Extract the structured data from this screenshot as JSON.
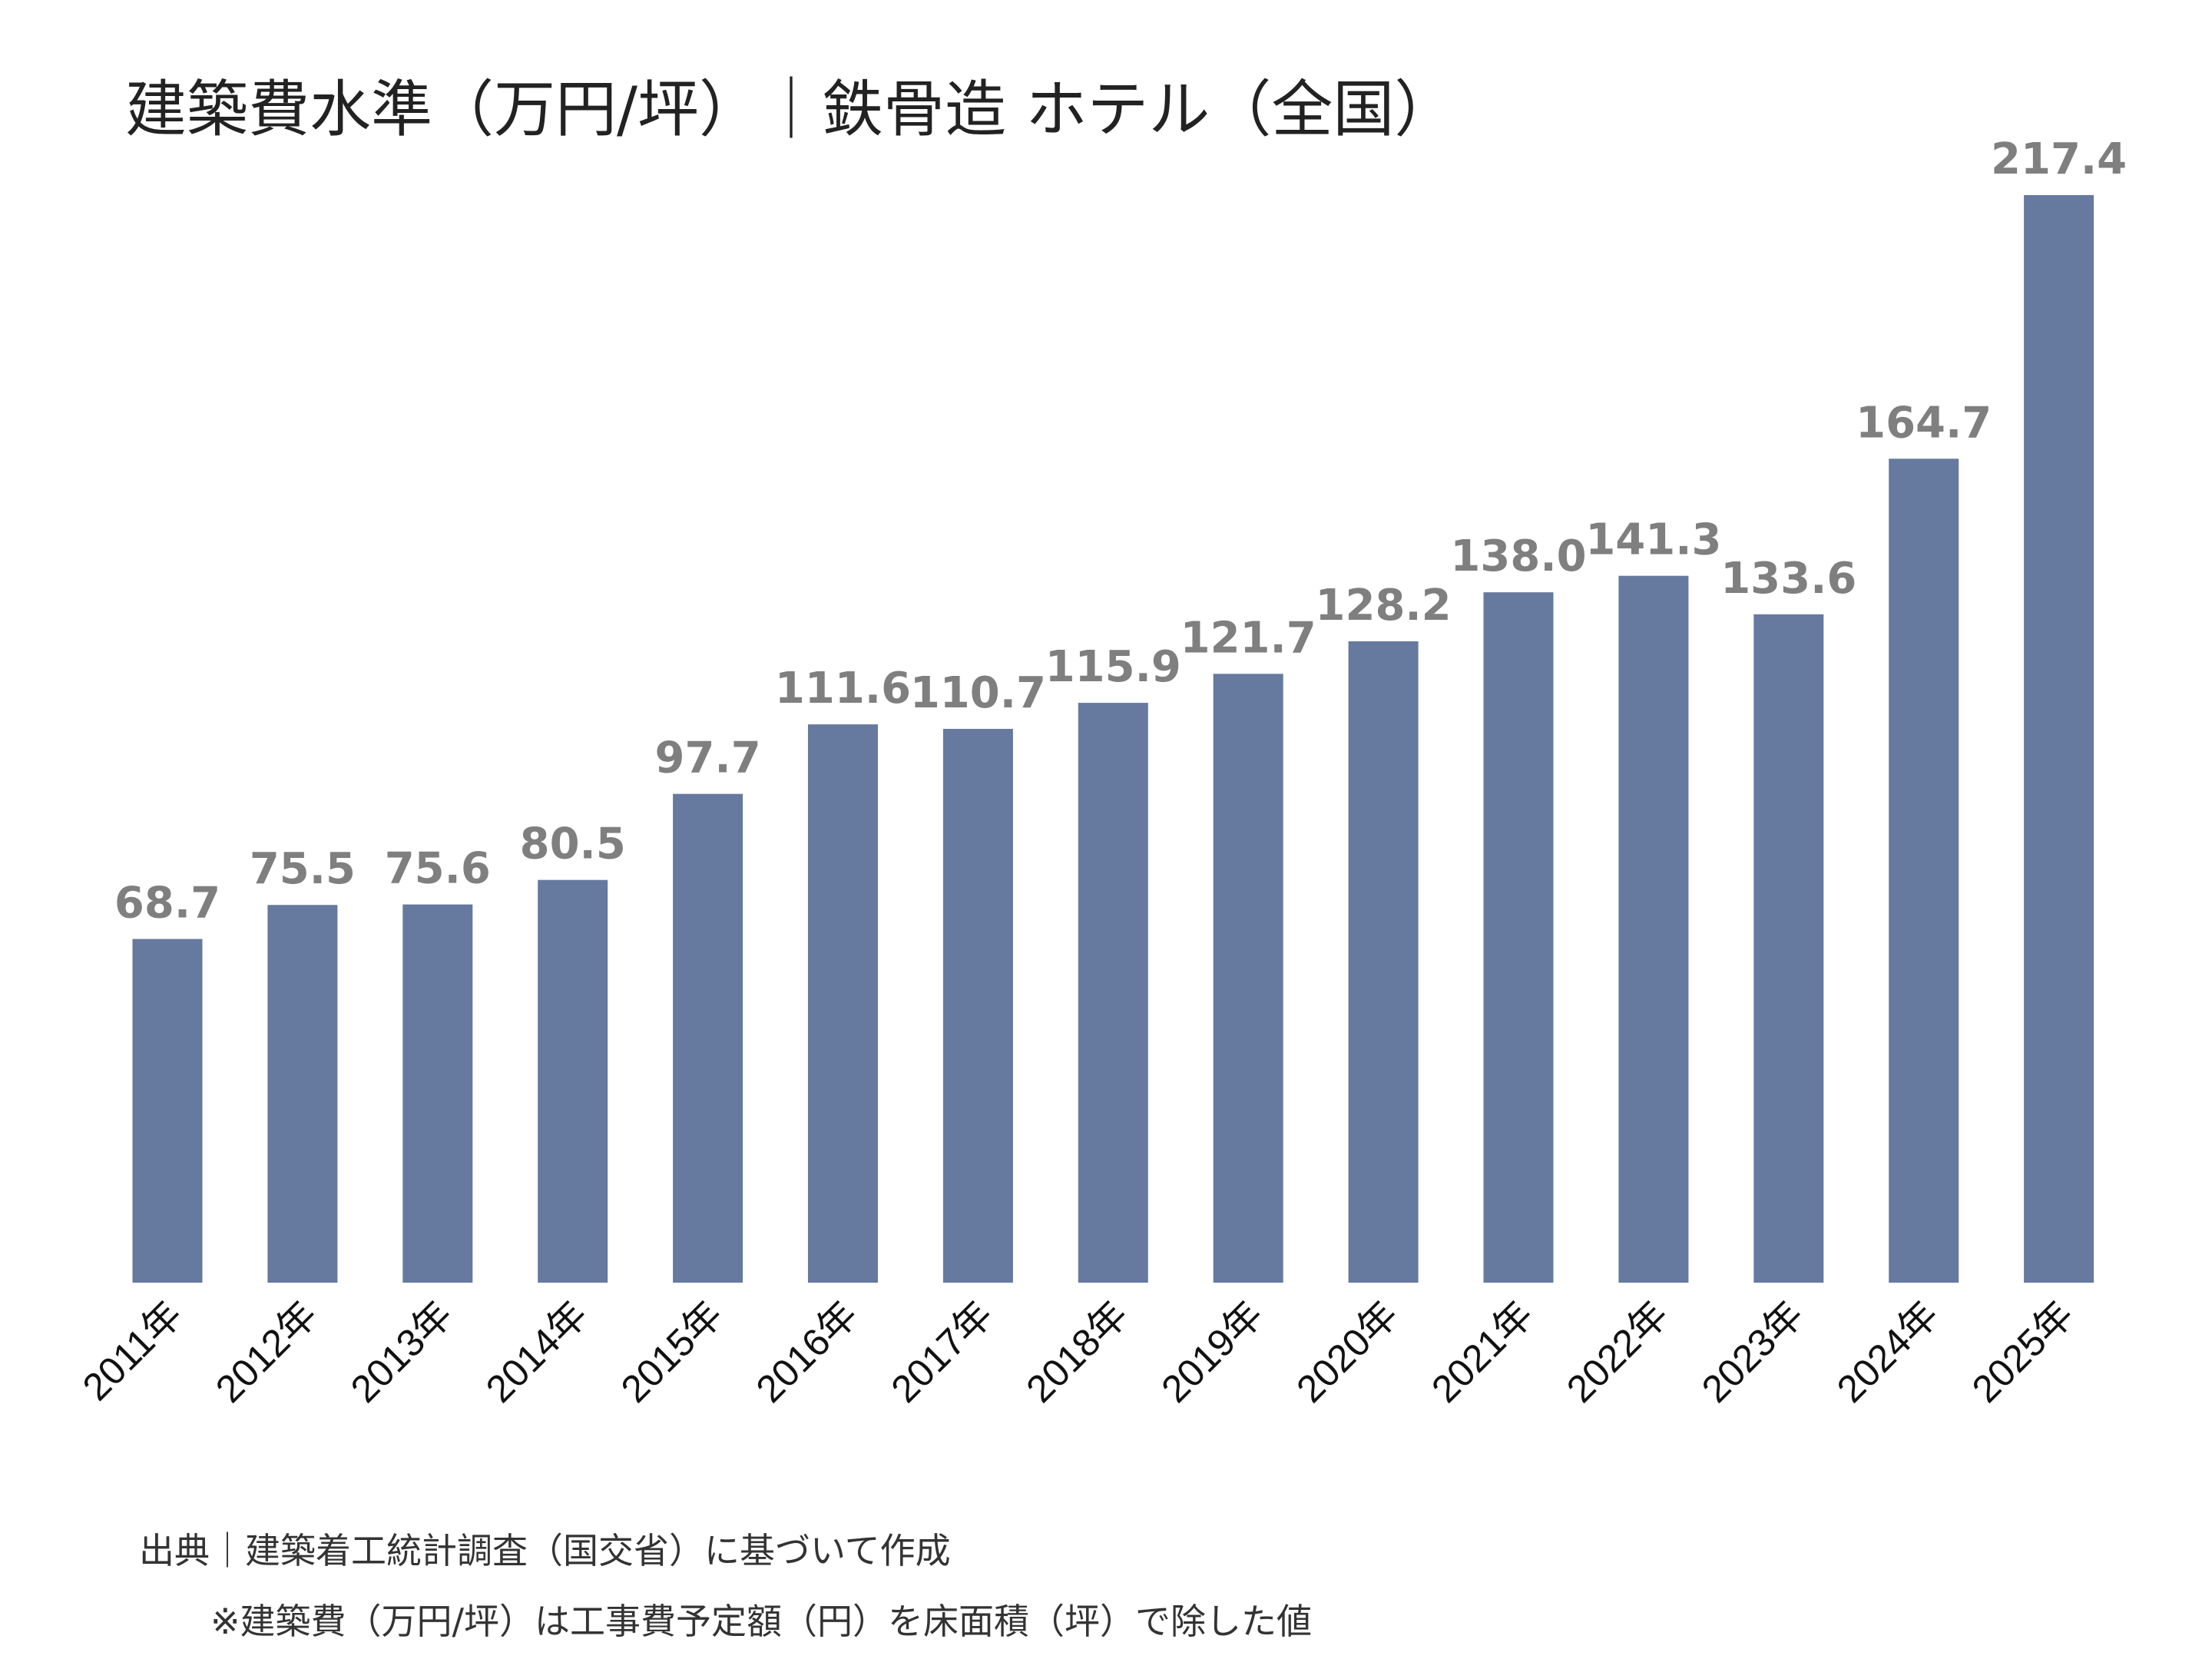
{
  "chart_data": {
    "type": "bar",
    "title": "建築費水準（万円/坪）｜鉄骨造 ホテル（全国）",
    "categories": [
      "2011年",
      "2012年",
      "2013年",
      "2014年",
      "2015年",
      "2016年",
      "2017年",
      "2018年",
      "2019年",
      "2020年",
      "2021年",
      "2022年",
      "2023年",
      "2024年",
      "2025年"
    ],
    "values": [
      68.7,
      75.5,
      75.6,
      80.5,
      97.7,
      111.6,
      110.7,
      115.9,
      121.7,
      128.2,
      138.0,
      141.3,
      133.6,
      164.7,
      217.4
    ],
    "value_labels": [
      "68.7",
      "75.5",
      "75.6",
      "80.5",
      "97.7",
      "111.6",
      "110.7",
      "115.9",
      "121.7",
      "128.2",
      "138.0",
      "141.3",
      "133.6",
      "164.7",
      "217.4"
    ],
    "xlabel": "",
    "ylabel": "",
    "ylim": [
      0,
      217.4
    ],
    "grid": false,
    "bar_color": "#66799f",
    "label_color": "#7f7f7f"
  },
  "notes": {
    "source": "出典｜建築着工統計調査（国交省）に基づいて作成",
    "footnote": "※建築費（万円/坪）は工事費予定額（円）を床面積（坪）で除した値"
  }
}
